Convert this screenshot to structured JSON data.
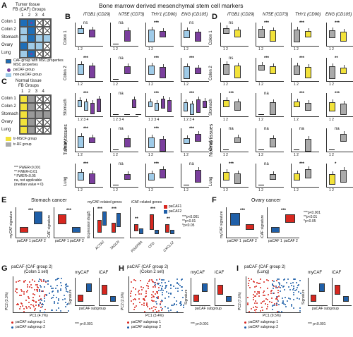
{
  "panels": {
    "A": "A",
    "B": "B",
    "C": "C",
    "D": "D",
    "E": "E",
    "F": "F",
    "G": "G",
    "H": "H",
    "I": "I"
  },
  "top_title": "Bone marrow derived mesenchymal stem cell markers",
  "panelA": {
    "title1": "Tumor tissue",
    "title2": "FB (CAF) Groups",
    "cols": [
      "1",
      "2",
      "3",
      "4"
    ],
    "rows": [
      "Colon 1",
      "Colon 2",
      "Stomach",
      "Ovary",
      "Lung"
    ],
    "legend": [
      "CAF group with MSC properties",
      "paCAF group",
      "non-paCAF group"
    ]
  },
  "panelC": {
    "title1": "Normal tissue",
    "title2": "FB Groups",
    "cols": [
      "1",
      "2",
      "3",
      "4"
    ],
    "rows": [
      "Colon 1",
      "Colon 2",
      "Stomach",
      "Ovary",
      "Lung"
    ],
    "legend": [
      "tr-MSCF group",
      "tr-RF group"
    ]
  },
  "stats_legend": [
    "*** FWER<0.001",
    "** FWER<0.01",
    "* FWER<0.05",
    "na, not applicable",
    "(median value = 0)"
  ],
  "genes": [
    "ITGB1 (CD29)",
    "NT5E (CD73)",
    "THY1 (CD90)",
    "ENG (CD105)"
  ],
  "row_labels": [
    "Colon 1",
    "Colon 2",
    "Stomach",
    "Ovary",
    "Lung"
  ],
  "tumor_label": "Tumor tissues",
  "normal_label": "Normal tissues",
  "sig_B": [
    [
      "ns",
      "na",
      "***",
      "ns"
    ],
    [
      "***",
      "na",
      "***",
      "***"
    ],
    [
      "***",
      "na",
      "***",
      "***"
    ],
    [
      "***",
      "na",
      "***",
      "***"
    ],
    [
      "***",
      "na",
      "***",
      "na"
    ]
  ],
  "sig_D": [
    [
      "ns",
      "***",
      "***",
      "***"
    ],
    [
      "ns",
      "***",
      "***",
      "**"
    ],
    [
      "***",
      "na",
      "***",
      "***"
    ],
    [
      "na",
      "na",
      "na",
      "na"
    ],
    [
      "***",
      "na",
      "***",
      "*"
    ]
  ],
  "panelE": {
    "title": "Stomach cancer",
    "ylab1": "myCAF signature",
    "ylab2": "iCAF signature",
    "xcat": [
      "paCAF 1",
      "paCAF 2"
    ],
    "sub1": "myCAF-related genes",
    "sub2": "iCAF-related genes",
    "ylab3": "Expression (log2)",
    "genes_my": [
      "ACTA2",
      "TAGLN"
    ],
    "genes_i": [
      "PDGFRA",
      "CFD",
      "CXCL12"
    ],
    "legend": [
      "paCAF1",
      "paCAF2"
    ],
    "pvals": [
      "***p<0.001",
      "**p<0.01",
      "*p<0.05"
    ]
  },
  "panelF": {
    "title": "Ovary cancer",
    "ylab1": "myCAF signature",
    "ylab2": "iCAF signature",
    "xcat": [
      "paCAF 1",
      "paCAF 2"
    ],
    "pvals": [
      "***p<0.001",
      "**p<0.01",
      "*p<0.05"
    ]
  },
  "panelG": {
    "title": "paCAF (CAF group 2)",
    "subtitle": "(Colon 1 set)",
    "xlab": "PC1 (4.7%)",
    "ylab": "PC2 (3.3%)",
    "legend": [
      "paCAF subgroup 1",
      "paCAF subgroup 2"
    ],
    "my": "myCAF",
    "i": "iCAF",
    "xsub": "paCAF subgroup",
    "sig": "Signature",
    "p": "*** p<0.001"
  },
  "panelH": {
    "title": "paCAF (CAF group 2)",
    "subtitle": "(Colon 2 set)",
    "xlab": "PC1 (3.4%)",
    "ylab": "PC2 (2.6%)",
    "legend": [
      "paCAF subgroup 1",
      "paCAF subgroup 2"
    ],
    "my": "myCAF",
    "i": "iCAF",
    "xsub": "paCAF subgroup",
    "sig": "Signature",
    "p": "*** p<0.001"
  },
  "panelI": {
    "title": "paCAF (CAF group 2)",
    "subtitle": "(Lung)",
    "xlab": "PC1 (9.5%)",
    "ylab": "PC2 (7.6%)",
    "legend": [
      "paCAF subgroup 1",
      "paCAF subgroup 2"
    ],
    "my": "myCAF",
    "i": "iCAF",
    "xsub": "paCAF subgroup",
    "sig": "Signature",
    "p": "*** p<0.001"
  },
  "colors": {
    "lightblue": "#9fcbe8",
    "blue": "#1f5fa8",
    "purple": "#7b3f9e",
    "yellow": "#f2e23a",
    "gray": "#aaaaaa",
    "red": "#d7271f",
    "white": "#ffffff"
  }
}
